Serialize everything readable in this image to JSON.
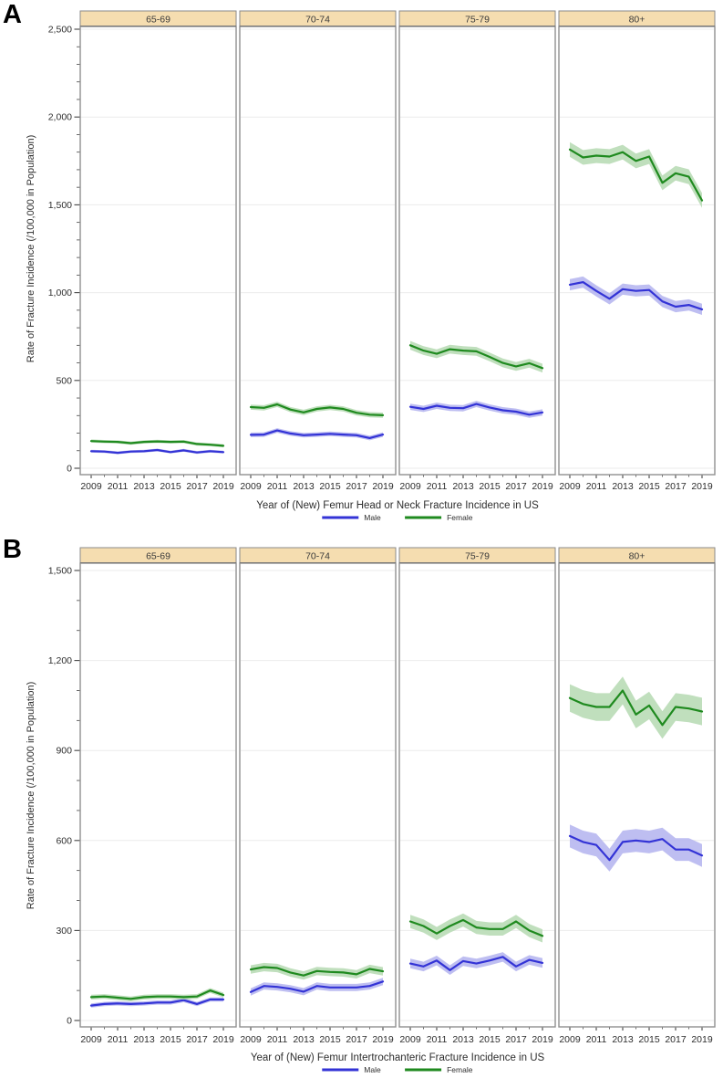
{
  "palette": {
    "male_line": "#3333d6",
    "male_band": "#b7b7f0",
    "female_line": "#1f8a1f",
    "female_band": "#b9dcb6",
    "facet_header_fill": "#f5ddb0",
    "facet_header_border": "#8a8a8a",
    "facet_header_underline": "#3a3a3a",
    "plot_border": "#909090",
    "gridline": "#ebebeb",
    "tick": "#444444",
    "text": "#2e2e2e"
  },
  "chart_data": [
    {
      "panel_label": "A",
      "type": "line",
      "facet_by": "age-group",
      "facets": [
        "65-69",
        "70-74",
        "75-79",
        "80+"
      ],
      "x": [
        2009,
        2010,
        2011,
        2012,
        2013,
        2014,
        2015,
        2016,
        2017,
        2018,
        2019
      ],
      "xtick_labels": [
        "2009",
        "2011",
        "2013",
        "2015",
        "2017",
        "2019"
      ],
      "xlabel": "Year of (New) Femur Head or Neck Fracture Incidence in US",
      "ylabel": "Rate of Fracture Incidence (/100,000 in Population)",
      "ylim": [
        0,
        2500
      ],
      "yticks": [
        0,
        500,
        1000,
        1500,
        2000,
        2500
      ],
      "ytick_labels": [
        "0",
        "500",
        "1,000",
        "1,500",
        "2,000",
        "2,500"
      ],
      "y_major_step": 500,
      "y_minor_step": 100,
      "grid": true,
      "legend_position": "bottom",
      "legend": [
        {
          "label": "Male",
          "color": "#3333d6"
        },
        {
          "label": "Female",
          "color": "#1f8a1f"
        }
      ],
      "series": [
        {
          "facet": "65-69",
          "name": "Male",
          "values": [
            97,
            95,
            88,
            95,
            97,
            104,
            92,
            102,
            90,
            97,
            92
          ],
          "ci": 8
        },
        {
          "facet": "65-69",
          "name": "Female",
          "values": [
            155,
            152,
            150,
            143,
            150,
            153,
            150,
            152,
            138,
            134,
            128
          ],
          "ci": 9
        },
        {
          "facet": "70-74",
          "name": "Male",
          "values": [
            190,
            192,
            215,
            198,
            188,
            192,
            196,
            192,
            188,
            172,
            192
          ],
          "ci": 13
        },
        {
          "facet": "70-74",
          "name": "Female",
          "values": [
            348,
            344,
            364,
            334,
            318,
            338,
            346,
            338,
            316,
            305,
            302
          ],
          "ci": 15
        },
        {
          "facet": "75-79",
          "name": "Male",
          "values": [
            350,
            338,
            356,
            344,
            342,
            366,
            346,
            330,
            322,
            305,
            318
          ],
          "ci": 18
        },
        {
          "facet": "75-79",
          "name": "Female",
          "values": [
            700,
            670,
            652,
            678,
            670,
            666,
            634,
            600,
            580,
            598,
            570
          ],
          "ci": 25
        },
        {
          "facet": "80+",
          "name": "Male",
          "values": [
            1045,
            1060,
            1010,
            965,
            1020,
            1010,
            1015,
            950,
            920,
            930,
            905
          ],
          "ci": 32
        },
        {
          "facet": "80+",
          "name": "Female",
          "values": [
            1815,
            1770,
            1780,
            1775,
            1800,
            1750,
            1775,
            1625,
            1680,
            1660,
            1525
          ],
          "ci": 42
        }
      ]
    },
    {
      "panel_label": "B",
      "type": "line",
      "facet_by": "age-group",
      "facets": [
        "65-69",
        "70-74",
        "75-79",
        "80+"
      ],
      "x": [
        2009,
        2010,
        2011,
        2012,
        2013,
        2014,
        2015,
        2016,
        2017,
        2018,
        2019
      ],
      "xtick_labels": [
        "2009",
        "2011",
        "2013",
        "2015",
        "2017",
        "2019"
      ],
      "xlabel": "Year of (New) Femur Intertrochanteric Fracture Incidence in US",
      "ylabel": "Rate of Fracture Incidence (/100,000 in Population)",
      "ylim": [
        0,
        1500
      ],
      "yticks": [
        0,
        300,
        600,
        900,
        1200,
        1500
      ],
      "ytick_labels": [
        "0",
        "300",
        "600",
        "900",
        "1,200",
        "1,500"
      ],
      "y_major_step": 300,
      "y_minor_step": 100,
      "grid": true,
      "legend_position": "bottom",
      "legend": [
        {
          "label": "Male",
          "color": "#3333d6"
        },
        {
          "label": "Female",
          "color": "#1f8a1f"
        }
      ],
      "series": [
        {
          "facet": "65-69",
          "name": "Male",
          "values": [
            50,
            55,
            57,
            55,
            57,
            60,
            60,
            68,
            55,
            70,
            70
          ],
          "ci": 7
        },
        {
          "facet": "65-69",
          "name": "Female",
          "values": [
            78,
            80,
            76,
            72,
            78,
            80,
            80,
            78,
            80,
            100,
            85
          ],
          "ci": 8
        },
        {
          "facet": "70-74",
          "name": "Male",
          "values": [
            95,
            115,
            112,
            106,
            96,
            115,
            110,
            110,
            110,
            115,
            130
          ],
          "ci": 12
        },
        {
          "facet": "70-74",
          "name": "Female",
          "values": [
            170,
            178,
            175,
            160,
            150,
            165,
            162,
            160,
            154,
            172,
            164
          ],
          "ci": 14
        },
        {
          "facet": "75-79",
          "name": "Male",
          "values": [
            190,
            180,
            200,
            168,
            198,
            190,
            200,
            212,
            180,
            202,
            192
          ],
          "ci": 16
        },
        {
          "facet": "75-79",
          "name": "Female",
          "values": [
            330,
            315,
            290,
            315,
            335,
            310,
            305,
            305,
            330,
            300,
            282
          ],
          "ci": 22
        },
        {
          "facet": "80+",
          "name": "Male",
          "values": [
            615,
            595,
            585,
            535,
            595,
            600,
            595,
            605,
            570,
            570,
            550
          ],
          "ci": 38
        },
        {
          "facet": "80+",
          "name": "Female",
          "values": [
            1075,
            1055,
            1045,
            1045,
            1100,
            1020,
            1050,
            985,
            1045,
            1040,
            1030
          ],
          "ci": 46
        }
      ]
    }
  ]
}
